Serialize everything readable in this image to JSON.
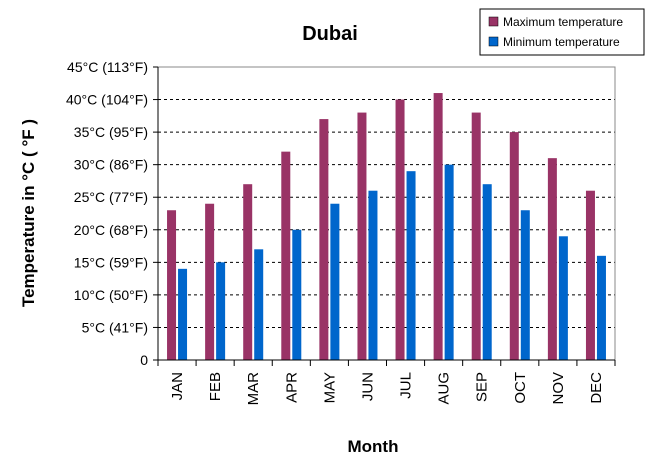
{
  "chart_data": {
    "type": "bar",
    "title": "Dubai",
    "xlabel": "Month",
    "ylabel": "Temperature in °C ( °F )",
    "categories": [
      "JAN",
      "FEB",
      "MAR",
      "APR",
      "MAY",
      "JUN",
      "JUL",
      "AUG",
      "SEP",
      "OCT",
      "NOV",
      "DEC"
    ],
    "series": [
      {
        "name": "Maximum temperature",
        "color": "#993366",
        "values": [
          23,
          24,
          27,
          32,
          37,
          38,
          40,
          41,
          38,
          35,
          31,
          26
        ]
      },
      {
        "name": "Minimum temperature",
        "color": "#0066cc",
        "values": [
          14,
          15,
          17,
          20,
          24,
          26,
          29,
          30,
          27,
          23,
          19,
          16
        ]
      }
    ],
    "ylim": [
      0,
      45
    ],
    "yticks": [
      0,
      5,
      10,
      15,
      20,
      25,
      30,
      35,
      40,
      45
    ],
    "ytick_labels": [
      "0",
      "5°C (41°F)",
      "10°C (50°F)",
      "15°C (59°F)",
      "20°C (68°F)",
      "25°C (77°F)",
      "30°C (86°F)",
      "35°C (95°F)",
      "40°C (104°F)",
      "45°C (113°F)"
    ],
    "grid": "horizontal dashed",
    "legend_position": "top-right"
  }
}
